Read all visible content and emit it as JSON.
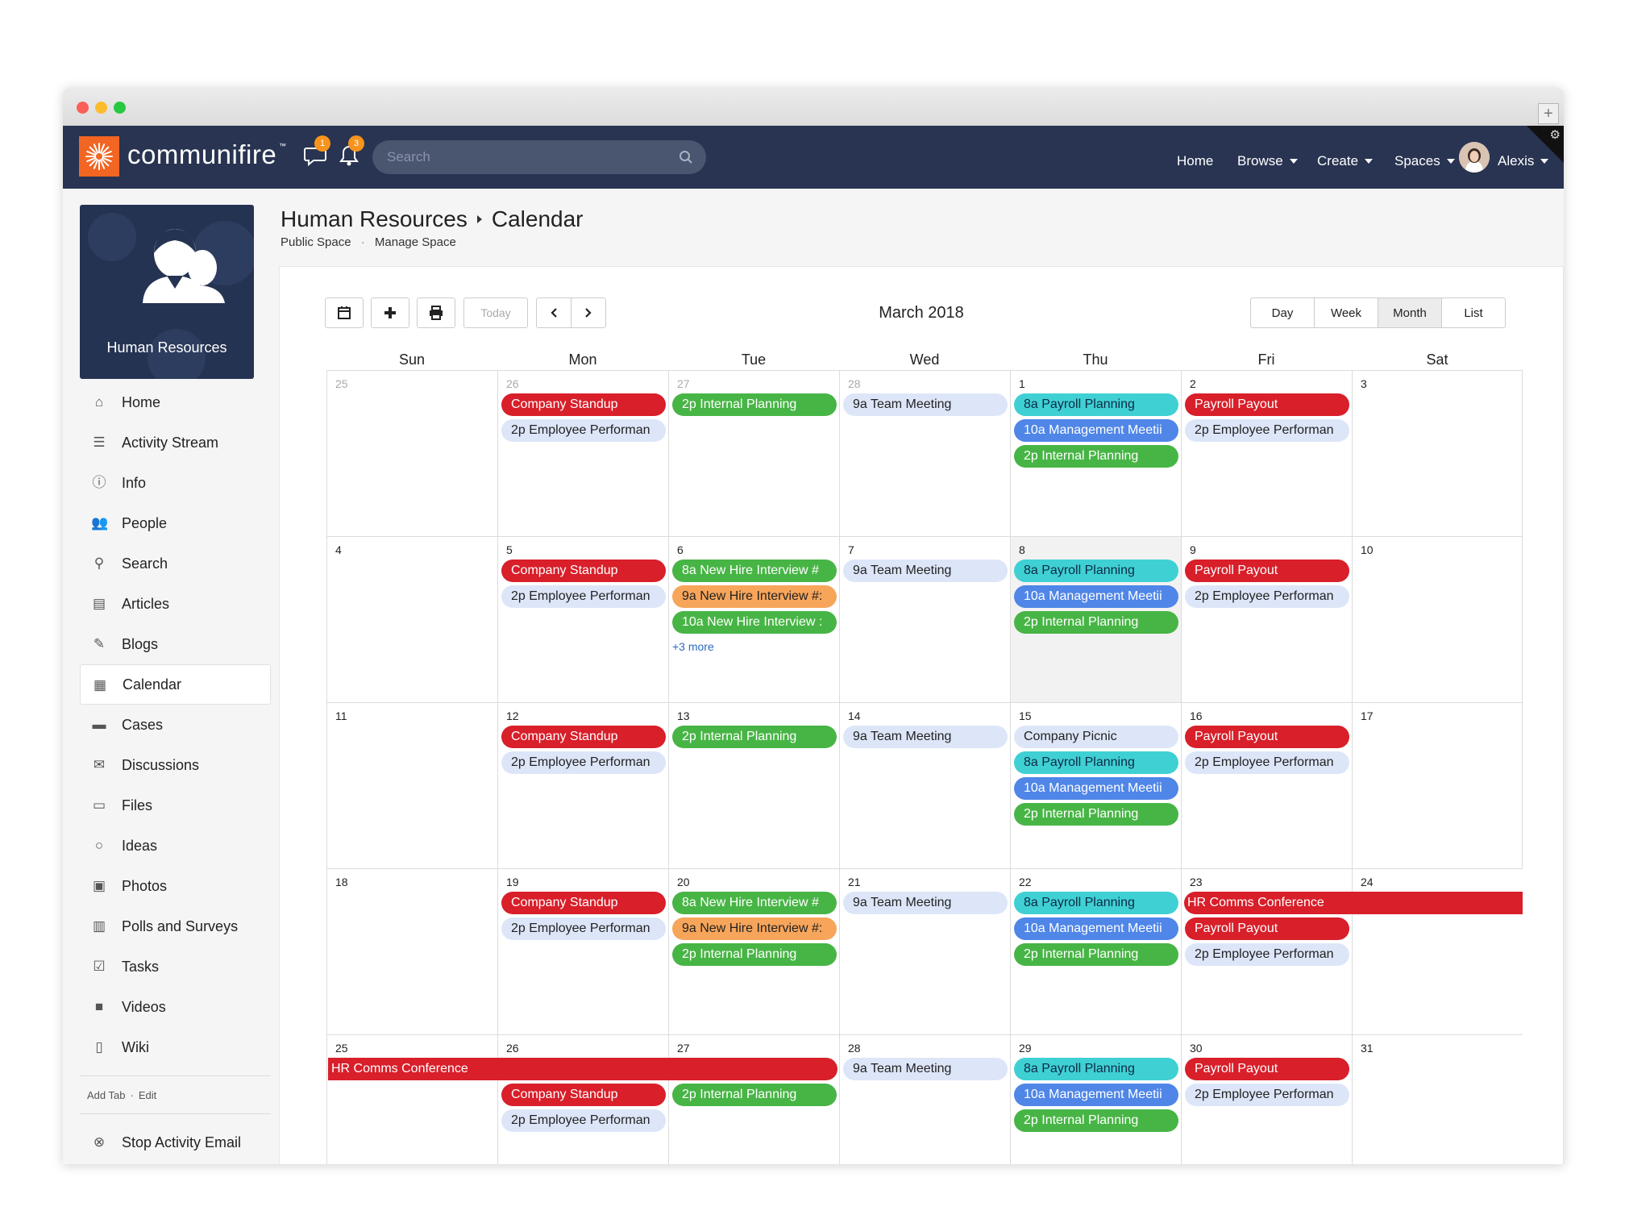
{
  "navbar": {
    "brand": "communifire",
    "brand_tm": "™",
    "message_count": "1",
    "alert_count": "3",
    "search_placeholder": "Search",
    "links": {
      "home": "Home",
      "browse": "Browse",
      "create": "Create",
      "spaces": "Spaces",
      "user": "Alexis"
    }
  },
  "space": {
    "name": "Human Resources"
  },
  "breadcrumb": {
    "space": "Human Resources",
    "page": "Calendar",
    "sub_public": "Public Space",
    "sub_sep": "·",
    "sub_manage": "Manage Space"
  },
  "sidebar": {
    "items": [
      {
        "label": "Home",
        "icon": "home-icon"
      },
      {
        "label": "Activity Stream",
        "icon": "list-icon"
      },
      {
        "label": "Info",
        "icon": "info-icon"
      },
      {
        "label": "People",
        "icon": "people-icon"
      },
      {
        "label": "Search",
        "icon": "search-icon"
      },
      {
        "label": "Articles",
        "icon": "article-icon"
      },
      {
        "label": "Blogs",
        "icon": "blog-icon"
      },
      {
        "label": "Calendar",
        "icon": "calendar-icon",
        "active": true
      },
      {
        "label": "Cases",
        "icon": "briefcase-icon"
      },
      {
        "label": "Discussions",
        "icon": "chat-icon"
      },
      {
        "label": "Files",
        "icon": "folder-icon"
      },
      {
        "label": "Ideas",
        "icon": "lightbulb-icon"
      },
      {
        "label": "Photos",
        "icon": "photo-icon"
      },
      {
        "label": "Polls and Surveys",
        "icon": "chart-icon"
      },
      {
        "label": "Tasks",
        "icon": "check-icon"
      },
      {
        "label": "Videos",
        "icon": "video-icon"
      },
      {
        "label": "Wiki",
        "icon": "book-icon"
      }
    ],
    "add_tab": "Add Tab",
    "edit": "Edit",
    "stop_email": "Stop Activity Email"
  },
  "calendar": {
    "title": "March 2018",
    "today_label": "Today",
    "views": [
      "Day",
      "Week",
      "Month",
      "List"
    ],
    "active_view": "Month",
    "weekdays": [
      "Sun",
      "Mon",
      "Tue",
      "Wed",
      "Thu",
      "Fri",
      "Sat"
    ],
    "weeks": [
      {
        "days": [
          {
            "num": "25",
            "other": true,
            "events": []
          },
          {
            "num": "26",
            "other": true,
            "events": [
              {
                "text": "Company Standup",
                "color": "red"
              },
              {
                "text": "2p Employee Performan",
                "color": "light"
              }
            ]
          },
          {
            "num": "27",
            "other": true,
            "events": [
              {
                "text": "2p Internal Planning",
                "color": "green"
              }
            ]
          },
          {
            "num": "28",
            "other": true,
            "events": [
              {
                "text": "9a Team Meeting",
                "color": "light"
              }
            ]
          },
          {
            "num": "1",
            "events": [
              {
                "text": "8a Payroll Planning",
                "color": "cyan"
              },
              {
                "text": "10a Management Meetii",
                "color": "blue"
              },
              {
                "text": "2p Internal Planning",
                "color": "green"
              }
            ]
          },
          {
            "num": "2",
            "events": [
              {
                "text": "Payroll Payout",
                "color": "red"
              },
              {
                "text": "2p Employee Performan",
                "color": "light"
              }
            ]
          },
          {
            "num": "3",
            "events": []
          }
        ]
      },
      {
        "days": [
          {
            "num": "4",
            "events": []
          },
          {
            "num": "5",
            "events": [
              {
                "text": "Company Standup",
                "color": "red"
              },
              {
                "text": "2p Employee Performan",
                "color": "light"
              }
            ]
          },
          {
            "num": "6",
            "events": [
              {
                "text": "8a New Hire Interview #",
                "color": "green"
              },
              {
                "text": "9a New Hire Interview #:",
                "color": "orange"
              },
              {
                "text": "10a New Hire Interview :",
                "color": "green"
              }
            ],
            "more": "+3 more"
          },
          {
            "num": "7",
            "events": [
              {
                "text": "9a Team Meeting",
                "color": "light"
              }
            ]
          },
          {
            "num": "8",
            "today": true,
            "events": [
              {
                "text": "8a Payroll Planning",
                "color": "cyan"
              },
              {
                "text": "10a Management Meetii",
                "color": "blue"
              },
              {
                "text": "2p Internal Planning",
                "color": "green"
              }
            ]
          },
          {
            "num": "9",
            "events": [
              {
                "text": "Payroll Payout",
                "color": "red"
              },
              {
                "text": "2p Employee Performan",
                "color": "light"
              }
            ]
          },
          {
            "num": "10",
            "events": []
          }
        ]
      },
      {
        "days": [
          {
            "num": "11",
            "events": []
          },
          {
            "num": "12",
            "events": [
              {
                "text": "Company Standup",
                "color": "red"
              },
              {
                "text": "2p Employee Performan",
                "color": "light"
              }
            ]
          },
          {
            "num": "13",
            "events": [
              {
                "text": "2p Internal Planning",
                "color": "green"
              }
            ]
          },
          {
            "num": "14",
            "events": [
              {
                "text": "9a Team Meeting",
                "color": "light"
              }
            ]
          },
          {
            "num": "15",
            "events": [
              {
                "text": "Company Picnic",
                "color": "light"
              },
              {
                "text": "8a Payroll Planning",
                "color": "cyan"
              },
              {
                "text": "10a Management Meetii",
                "color": "blue"
              },
              {
                "text": "2p Internal Planning",
                "color": "green"
              }
            ]
          },
          {
            "num": "16",
            "events": [
              {
                "text": "Payroll Payout",
                "color": "red"
              },
              {
                "text": "2p Employee Performan",
                "color": "light"
              }
            ]
          },
          {
            "num": "17",
            "events": []
          }
        ]
      },
      {
        "span": {
          "text": "HR Comms Conference",
          "from_day": 5,
          "to_day": 6
        },
        "days": [
          {
            "num": "18",
            "events": []
          },
          {
            "num": "19",
            "events": [
              {
                "text": "Company Standup",
                "color": "red"
              },
              {
                "text": "2p Employee Performan",
                "color": "light"
              }
            ]
          },
          {
            "num": "20",
            "events": [
              {
                "text": "8a New Hire Interview #",
                "color": "green"
              },
              {
                "text": "9a New Hire Interview #:",
                "color": "orange"
              },
              {
                "text": "2p Internal Planning",
                "color": "green"
              }
            ]
          },
          {
            "num": "21",
            "events": [
              {
                "text": "9a Team Meeting",
                "color": "light"
              }
            ]
          },
          {
            "num": "22",
            "events": [
              {
                "text": "8a Payroll Planning",
                "color": "cyan"
              },
              {
                "text": "10a Management Meetii",
                "color": "blue"
              },
              {
                "text": "2p Internal Planning",
                "color": "green"
              }
            ]
          },
          {
            "num": "23",
            "offset": 1,
            "events": [
              {
                "text": "Payroll Payout",
                "color": "red"
              },
              {
                "text": "2p Employee Performan",
                "color": "light"
              }
            ]
          },
          {
            "num": "24",
            "events": []
          }
        ]
      },
      {
        "span": {
          "text": "HR Comms Conference",
          "from_day": 0,
          "to_day": 2
        },
        "days": [
          {
            "num": "25",
            "events": []
          },
          {
            "num": "26",
            "offset": 1,
            "events": [
              {
                "text": "Company Standup",
                "color": "red"
              },
              {
                "text": "2p Employee Performan",
                "color": "light"
              }
            ]
          },
          {
            "num": "27",
            "offset": 1,
            "events": [
              {
                "text": "2p Internal Planning",
                "color": "green"
              }
            ]
          },
          {
            "num": "28",
            "events": [
              {
                "text": "9a Team Meeting",
                "color": "light"
              }
            ]
          },
          {
            "num": "29",
            "events": [
              {
                "text": "8a Payroll Planning",
                "color": "cyan"
              },
              {
                "text": "10a Management Meetii",
                "color": "blue"
              },
              {
                "text": "2p Internal Planning",
                "color": "green"
              }
            ]
          },
          {
            "num": "30",
            "events": [
              {
                "text": "Payroll Payout",
                "color": "red"
              },
              {
                "text": "2p Employee Performan",
                "color": "light"
              }
            ]
          },
          {
            "num": "31",
            "events": []
          }
        ]
      }
    ]
  }
}
